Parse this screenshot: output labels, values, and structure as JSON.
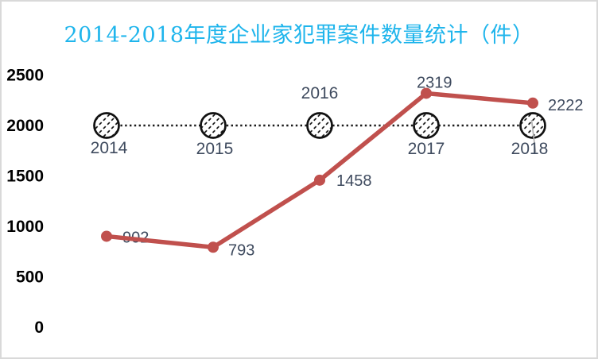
{
  "chart_data": {
    "type": "line",
    "title": "2014-2018年度企业家犯罪案件数量统计（件）",
    "title_color": "#1fb5ec",
    "categories": [
      "2014",
      "2015",
      "2016",
      "2017",
      "2018"
    ],
    "series": [
      {
        "name": "cases-per-year",
        "values": [
          902,
          793,
          1458,
          2319,
          2222
        ],
        "color": "#c0504d",
        "marker": "filled-circle",
        "line_style": "solid",
        "data_labels": [
          "902",
          "793",
          "1458",
          "2319",
          "2222"
        ]
      },
      {
        "name": "reference-line-2000",
        "values": [
          2000,
          2000,
          2000,
          2000,
          2000
        ],
        "color": "#1a1a1a",
        "marker": "hatched-circle",
        "line_style": "dotted",
        "data_labels": [
          "2014",
          "2015",
          "2016",
          "2017",
          "2018"
        ]
      }
    ],
    "xlabel": "",
    "ylabel": "",
    "ylim": [
      0,
      2500
    ],
    "yticks": [
      "0",
      "500",
      "1000",
      "1500",
      "2000",
      "2500"
    ],
    "ytick_values": [
      0,
      500,
      1000,
      1500,
      2000,
      2500
    ],
    "grid": false,
    "legend": "none",
    "axis_lines": "none",
    "label_color": "#3e4a5e",
    "ytick_color": "#000000",
    "border_color": "#d9d9d9"
  }
}
